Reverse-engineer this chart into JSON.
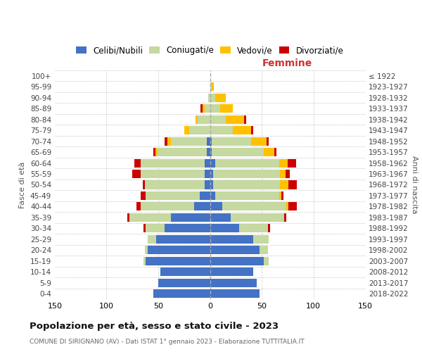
{
  "age_groups": [
    "0-4",
    "5-9",
    "10-14",
    "15-19",
    "20-24",
    "25-29",
    "30-34",
    "35-39",
    "40-44",
    "45-49",
    "50-54",
    "55-59",
    "60-64",
    "65-69",
    "70-74",
    "75-79",
    "80-84",
    "85-89",
    "90-94",
    "95-99",
    "100+"
  ],
  "birth_years": [
    "2018-2022",
    "2013-2017",
    "2008-2012",
    "2003-2007",
    "1998-2002",
    "1993-1997",
    "1988-1992",
    "1983-1987",
    "1978-1982",
    "1973-1977",
    "1968-1972",
    "1963-1967",
    "1958-1962",
    "1953-1957",
    "1948-1952",
    "1943-1947",
    "1938-1942",
    "1933-1937",
    "1928-1932",
    "1923-1927",
    "≤ 1922"
  ],
  "male_celibe": [
    55,
    50,
    48,
    62,
    60,
    52,
    44,
    38,
    15,
    10,
    5,
    5,
    5,
    3,
    3,
    0,
    0,
    0,
    0,
    0,
    0
  ],
  "male_coniugato": [
    0,
    0,
    0,
    2,
    3,
    8,
    18,
    40,
    52,
    52,
    58,
    62,
    62,
    48,
    35,
    20,
    12,
    5,
    2,
    0,
    0
  ],
  "male_vedovo": [
    0,
    0,
    0,
    0,
    0,
    0,
    0,
    0,
    0,
    0,
    0,
    0,
    0,
    2,
    3,
    5,
    2,
    2,
    0,
    0,
    0
  ],
  "male_divorziato": [
    0,
    0,
    0,
    0,
    0,
    0,
    2,
    2,
    4,
    5,
    2,
    8,
    6,
    2,
    3,
    0,
    0,
    2,
    0,
    0,
    0
  ],
  "female_nubile": [
    48,
    45,
    42,
    52,
    48,
    42,
    28,
    20,
    12,
    5,
    3,
    3,
    5,
    2,
    2,
    0,
    0,
    0,
    0,
    0,
    0
  ],
  "female_coniugata": [
    0,
    0,
    0,
    5,
    8,
    15,
    28,
    52,
    62,
    62,
    65,
    65,
    62,
    50,
    38,
    22,
    15,
    10,
    5,
    2,
    0
  ],
  "female_vedova": [
    0,
    0,
    0,
    0,
    0,
    0,
    0,
    0,
    2,
    2,
    8,
    5,
    8,
    10,
    15,
    18,
    18,
    12,
    10,
    2,
    0
  ],
  "female_divorziata": [
    0,
    0,
    0,
    0,
    0,
    0,
    2,
    2,
    8,
    2,
    8,
    4,
    8,
    2,
    2,
    2,
    2,
    0,
    0,
    0,
    0
  ],
  "colors": {
    "celibe": "#4472c4",
    "coniugato": "#c5d9a0",
    "vedovo": "#ffc000",
    "divorziato": "#cc0000"
  },
  "xlim": 150,
  "title": "Popolazione per età, sesso e stato civile - 2023",
  "subtitle": "COMUNE DI SIRIGNANO (AV) - Dati ISTAT 1° gennaio 2023 - Elaborazione TUTTITALIA.IT",
  "label_femmine": "Femmine",
  "ylabel_left": "Fasce di età",
  "ylabel_right": "Anni di nascita",
  "legend_labels": [
    "Celibi/Nubili",
    "Coniugati/e",
    "Vedovi/e",
    "Divorziati/e"
  ],
  "bg_color": "#ffffff",
  "grid_color": "#cccccc"
}
